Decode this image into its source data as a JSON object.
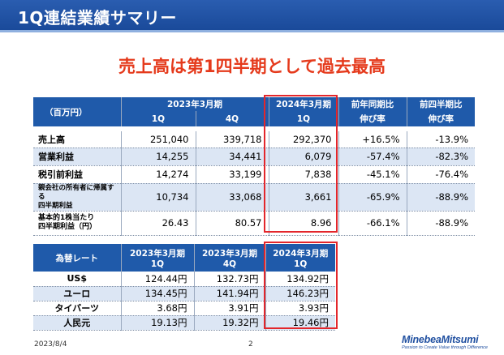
{
  "title": "1Q連結業績サマリー",
  "headline": "売上高は第1四半期として過去最高",
  "main_table": {
    "unit_label": "（百万円）",
    "fy2023_label": "2023年3月期",
    "fy2023_q1": "1Q",
    "fy2023_q4": "4Q",
    "fy2024_label": "2024年3月期",
    "fy2024_q1": "1Q",
    "yoy_label": "前年同期比",
    "yoy_sub": "伸び率",
    "qoq_label": "前四半期比",
    "qoq_sub": "伸び率",
    "rows": [
      {
        "label": "売上高",
        "q1_2023": "251,040",
        "q4_2023": "339,718",
        "q1_2024": "292,370",
        "yoy": "+16.5%",
        "qoq": "-13.9%"
      },
      {
        "label": "営業利益",
        "q1_2023": "14,255",
        "q4_2023": "34,441",
        "q1_2024": "6,079",
        "yoy": "-57.4%",
        "qoq": "-82.3%"
      },
      {
        "label": "税引前利益",
        "q1_2023": "14,274",
        "q4_2023": "33,199",
        "q1_2024": "7,838",
        "yoy": "-45.1%",
        "qoq": "-76.4%"
      },
      {
        "label_line1": "親会社の所有者に帰属する",
        "label_line2": "四半期利益",
        "q1_2023": "10,734",
        "q4_2023": "33,068",
        "q1_2024": "3,661",
        "yoy": "-65.9%",
        "qoq": "-88.9%"
      },
      {
        "label_line1": "基本的1株当たり",
        "label_line2": "四半期利益（円）",
        "q1_2023": "26.43",
        "q4_2023": "80.57",
        "q1_2024": "8.96",
        "yoy": "-66.1%",
        "qoq": "-88.9%"
      }
    ]
  },
  "fx_table": {
    "label": "為替レート",
    "c1_line1": "2023年3月期",
    "c1_line2": "1Q",
    "c2_line1": "2023年3月期",
    "c2_line2": "4Q",
    "c3_line1": "2024年3月期",
    "c3_line2": "1Q",
    "rows": [
      {
        "currency": "US$",
        "v1": "124.44円",
        "v2": "132.73円",
        "v3": "134.92円"
      },
      {
        "currency": "ユーロ",
        "v1": "134.45円",
        "v2": "141.94円",
        "v3": "146.23円"
      },
      {
        "currency": "タイバーツ",
        "v1": "3.68円",
        "v2": "3.91円",
        "v3": "3.93円"
      },
      {
        "currency": "人民元",
        "v1": "19.13円",
        "v2": "19.32円",
        "v3": "19.46円"
      }
    ]
  },
  "footer": {
    "date": "2023/8/4",
    "page": "2",
    "brand": "MinebeaMitsumi",
    "tagline": "Passion to Create Value through Difference"
  },
  "colors": {
    "header_blue": "#1f5aaa",
    "row_alt": "#dce6f4",
    "headline_red": "#e53a1c",
    "highlight_red": "#e3262b"
  }
}
